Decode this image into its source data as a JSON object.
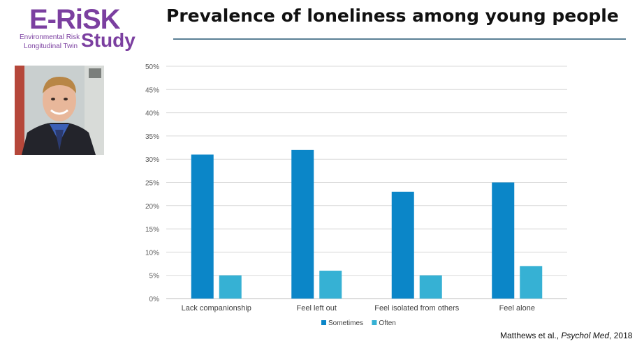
{
  "logo": {
    "main": "E-RiSK",
    "line1": "Environmental Risk",
    "line2": "Longitudinal Twin",
    "study": "Study"
  },
  "title": "Prevalence of loneliness among young people",
  "citation": {
    "authors": "Matthews et al., ",
    "journal": "Psychol Med",
    "year": ", 2018"
  },
  "colors": {
    "logo": "#7b3fa0",
    "sometimes": "#0b86c8",
    "often": "#36b1d4",
    "title_rule": "#5a7f95"
  },
  "chart_data": {
    "type": "bar",
    "categories": [
      "Lack companionship",
      "Feel left out",
      "Feel isolated from others",
      "Feel alone"
    ],
    "series": [
      {
        "name": "Sometimes",
        "values": [
          31,
          32,
          23,
          25
        ]
      },
      {
        "name": "Often",
        "values": [
          5,
          6,
          5,
          7
        ]
      }
    ],
    "yticks": [
      "0%",
      "5%",
      "10%",
      "15%",
      "20%",
      "25%",
      "30%",
      "35%",
      "40%",
      "45%",
      "50%"
    ],
    "ylim": [
      0,
      50
    ],
    "grid": true,
    "legend": "bottom"
  }
}
